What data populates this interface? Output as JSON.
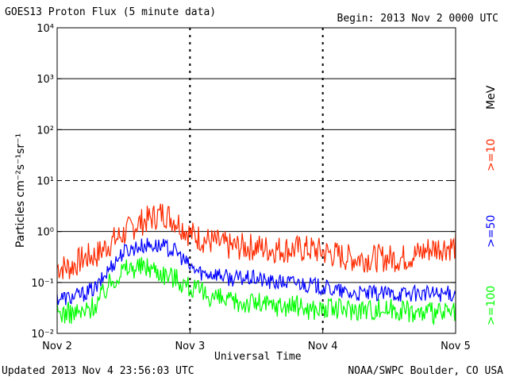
{
  "header": {
    "title": "GOES13 Proton Flux (5 minute data)",
    "begin": "Begin: 2013 Nov 2 0000 UTC"
  },
  "footer": {
    "updated": "Updated 2013 Nov  4 23:56:03 UTC",
    "source": "NOAA/SWPC Boulder, CO USA"
  },
  "chart_data": {
    "type": "line",
    "title": "GOES13 Proton Flux (5 minute data)",
    "xlabel": "Universal Time",
    "ylabel": "Particles cm⁻²s⁻¹sr⁻¹",
    "yscale": "log",
    "ylim": [
      0.01,
      10000
    ],
    "yticks": [
      {
        "value": 0.01,
        "label": "10⁻²"
      },
      {
        "value": 0.1,
        "label": "10⁻¹"
      },
      {
        "value": 1,
        "label": "10⁰"
      },
      {
        "value": 10,
        "label": "10¹"
      },
      {
        "value": 100,
        "label": "10²"
      },
      {
        "value": 1000,
        "label": "10³"
      },
      {
        "value": 10000,
        "label": "10⁴"
      }
    ],
    "xlim": [
      "2013-11-02 00:00",
      "2013-11-05 00:00"
    ],
    "xticks": [
      "Nov 2",
      "Nov 3",
      "Nov 4",
      "Nov 5"
    ],
    "legend_unit": "MeV",
    "colors": {
      "ge10": "#ff2a00",
      "ge50": "#0000ff",
      "ge100": "#00ff00"
    },
    "series": [
      {
        "name": ">=10",
        "color": "#ff2a00",
        "x_days": [
          0.0,
          0.1,
          0.2,
          0.3,
          0.4,
          0.5,
          0.6,
          0.7,
          0.8,
          0.9,
          1.0,
          1.1,
          1.2,
          1.3,
          1.4,
          1.5,
          1.6,
          1.7,
          1.8,
          1.9,
          2.0,
          2.1,
          2.2,
          2.3,
          2.4,
          2.5,
          2.6,
          2.7,
          2.8,
          2.9,
          3.0
        ],
        "values": [
          0.2,
          0.2,
          0.3,
          0.35,
          0.6,
          0.9,
          1.4,
          1.8,
          2.3,
          1.6,
          0.9,
          0.7,
          0.6,
          0.5,
          0.5,
          0.5,
          0.45,
          0.45,
          0.45,
          0.45,
          0.4,
          0.35,
          0.3,
          0.3,
          0.3,
          0.3,
          0.3,
          0.35,
          0.45,
          0.5,
          0.5
        ]
      },
      {
        "name": ">=50",
        "color": "#0000ff",
        "x_days": [
          0.0,
          0.1,
          0.2,
          0.3,
          0.4,
          0.5,
          0.6,
          0.7,
          0.8,
          0.9,
          1.0,
          1.1,
          1.2,
          1.3,
          1.4,
          1.5,
          1.6,
          1.7,
          1.8,
          1.9,
          2.0,
          2.1,
          2.2,
          2.3,
          2.4,
          2.5,
          2.6,
          2.7,
          2.8,
          2.9,
          3.0
        ],
        "values": [
          0.05,
          0.05,
          0.06,
          0.08,
          0.2,
          0.4,
          0.5,
          0.55,
          0.5,
          0.4,
          0.2,
          0.15,
          0.15,
          0.12,
          0.12,
          0.12,
          0.1,
          0.1,
          0.1,
          0.09,
          0.08,
          0.07,
          0.06,
          0.06,
          0.06,
          0.06,
          0.06,
          0.06,
          0.06,
          0.06,
          0.06
        ]
      },
      {
        "name": ">=100",
        "color": "#00ff00",
        "x_days": [
          0.0,
          0.1,
          0.2,
          0.3,
          0.4,
          0.5,
          0.6,
          0.7,
          0.8,
          0.9,
          1.0,
          1.1,
          1.2,
          1.3,
          1.4,
          1.5,
          1.6,
          1.7,
          1.8,
          1.9,
          2.0,
          2.1,
          2.2,
          2.3,
          2.4,
          2.5,
          2.6,
          2.7,
          2.8,
          2.9,
          3.0
        ],
        "values": [
          0.025,
          0.025,
          0.025,
          0.04,
          0.1,
          0.18,
          0.2,
          0.2,
          0.15,
          0.12,
          0.08,
          0.06,
          0.05,
          0.04,
          0.04,
          0.04,
          0.035,
          0.035,
          0.035,
          0.03,
          0.03,
          0.03,
          0.03,
          0.03,
          0.03,
          0.03,
          0.03,
          0.025,
          0.025,
          0.025,
          0.025
        ]
      }
    ]
  }
}
